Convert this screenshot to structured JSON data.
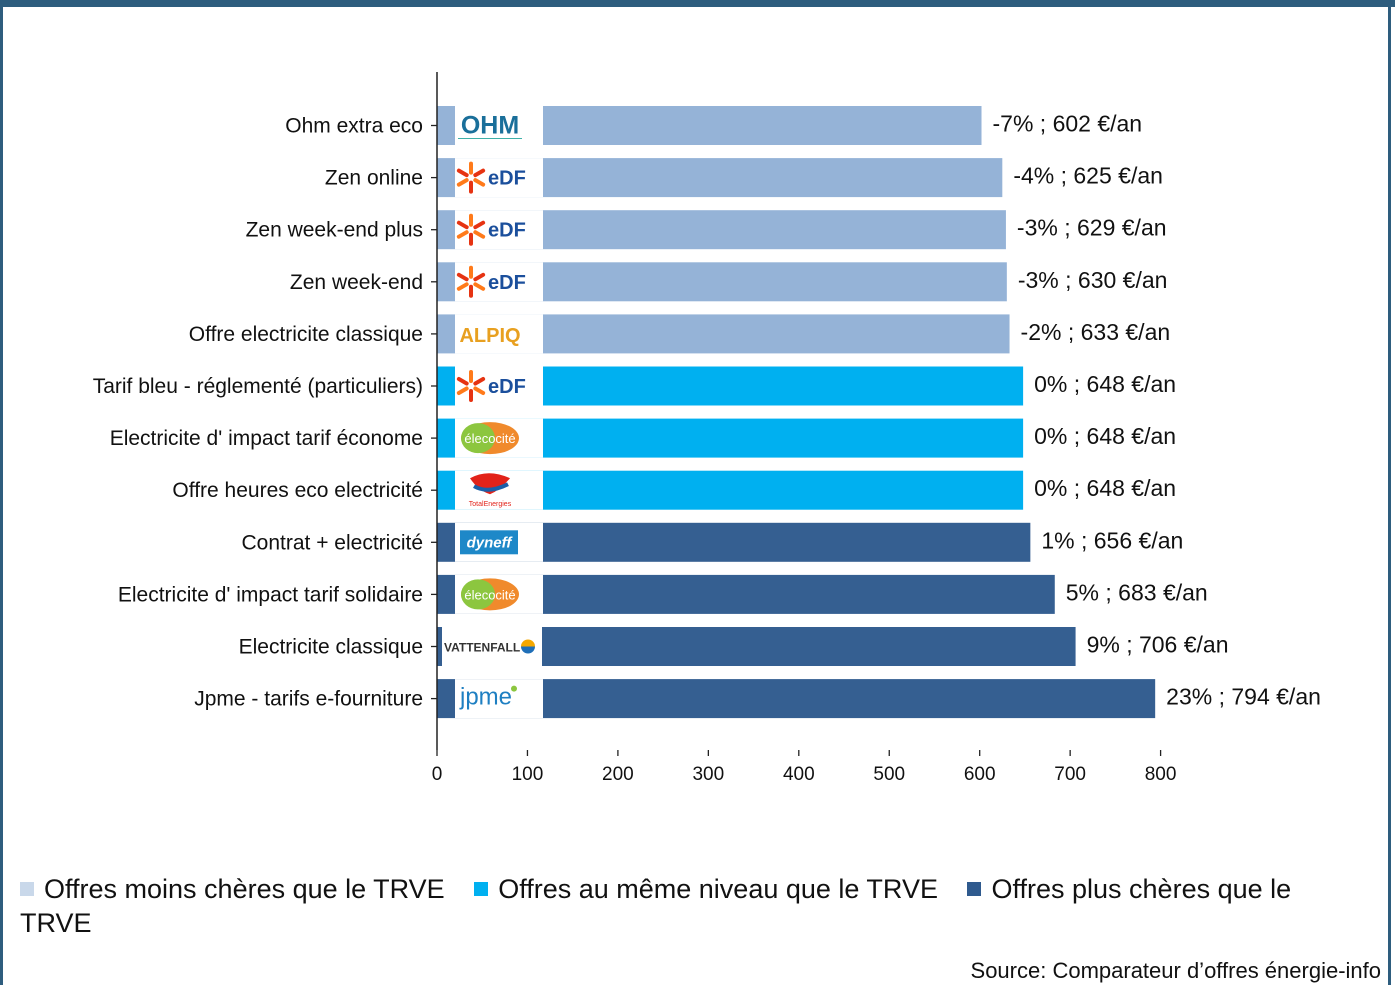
{
  "chart_data": {
    "type": "bar",
    "orientation": "horizontal",
    "categories": [
      "Ohm extra eco",
      "Zen online",
      "Zen week-end plus",
      "Zen week-end",
      "Offre electricite classique",
      "Tarif bleu - réglementé (particuliers)",
      "Electricite d' impact tarif économe",
      "Offre heures eco electricité",
      "Contrat + electricité",
      "Electricite d' impact tarif solidaire",
      "Electricite classique",
      "Jpme - tarifs e-fourniture"
    ],
    "values": [
      602,
      625,
      629,
      630,
      633,
      648,
      648,
      648,
      656,
      683,
      706,
      794
    ],
    "data_labels": [
      "-7% ; 602 €/an",
      "-4% ; 625 €/an",
      "-3% ; 629 €/an",
      "-3% ; 630 €/an",
      "-2% ; 633 €/an",
      "0% ; 648 €/an",
      "0% ; 648 €/an",
      "0% ; 648 €/an",
      "1% ; 656 €/an",
      "5% ; 683 €/an",
      "9% ; 706 €/an",
      "23% ; 794 €/an"
    ],
    "groups": [
      0,
      0,
      0,
      0,
      0,
      1,
      1,
      1,
      2,
      2,
      2,
      2
    ],
    "logos": [
      "ohm-energie-logo",
      "edf-logo",
      "edf-logo",
      "edf-logo",
      "alpiq-logo",
      "edf-logo",
      "elecocite-logo",
      "totalenergies-logo",
      "dyneff-logo",
      "elecocite-logo",
      "vattenfall-logo",
      "jpme-logo"
    ],
    "logo_texts": [
      "OHM",
      "eDF",
      "eDF",
      "eDF",
      "ALPIQ",
      "eDF",
      "élecocité",
      "TotalEnergies",
      "dyneff",
      "élecocité",
      "VATTENFALL",
      "jpme"
    ],
    "xlim": [
      0,
      850
    ],
    "xticks": [
      0,
      100,
      200,
      300,
      400,
      500,
      600,
      700,
      800
    ],
    "grid": false,
    "legend_placement": "bottom"
  },
  "legend": {
    "items": [
      {
        "label": "Offres moins chères que le TRVE",
        "color": "#c9d8ea"
      },
      {
        "label": "Offres au même niveau que le TRVE",
        "color": "#00b0f0"
      },
      {
        "label": "Offres plus chères que le TRVE",
        "color": "#2f5a8e"
      }
    ]
  },
  "colors": {
    "group_bars": [
      "#95b3d7",
      "#00b0f0",
      "#355f91"
    ],
    "frame": "#2e5d7e"
  },
  "source": "Source: Comparateur d’offres énergie-info"
}
